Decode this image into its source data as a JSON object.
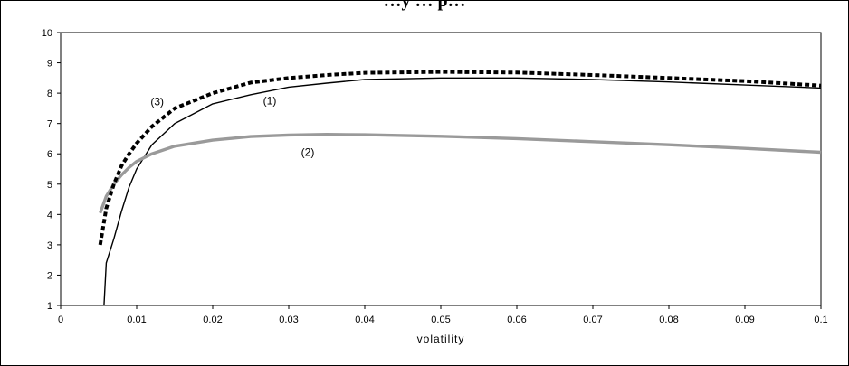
{
  "chart_data": {
    "type": "line",
    "title": "…y … p…",
    "xlabel": "volatility",
    "ylabel": "",
    "xlim": [
      0,
      0.1
    ],
    "ylim": [
      1,
      10
    ],
    "x_ticks": [
      "0",
      "0.01",
      "0.02",
      "0.03",
      "0.04",
      "0.05",
      "0.06",
      "0.07",
      "0.08",
      "0.09",
      "0.1"
    ],
    "y_ticks": [
      "1",
      "2",
      "3",
      "4",
      "5",
      "6",
      "7",
      "8",
      "9",
      "10"
    ],
    "grid": true,
    "legend": "none",
    "series": [
      {
        "name": "(1)",
        "color": "#000000",
        "style": "solid",
        "points": [
          [
            0.0057,
            1.0
          ],
          [
            0.006,
            2.4
          ],
          [
            0.007,
            3.2
          ],
          [
            0.008,
            4.1
          ],
          [
            0.009,
            4.9
          ],
          [
            0.01,
            5.5
          ],
          [
            0.012,
            6.3
          ],
          [
            0.015,
            7.0
          ],
          [
            0.02,
            7.65
          ],
          [
            0.025,
            7.95
          ],
          [
            0.03,
            8.2
          ],
          [
            0.035,
            8.33
          ],
          [
            0.04,
            8.45
          ],
          [
            0.05,
            8.5
          ],
          [
            0.06,
            8.5
          ],
          [
            0.07,
            8.45
          ],
          [
            0.08,
            8.37
          ],
          [
            0.09,
            8.27
          ],
          [
            0.1,
            8.17
          ]
        ]
      },
      {
        "name": "(2)",
        "color": "#9a9a9a",
        "style": "solid",
        "points": [
          [
            0.0052,
            4.05
          ],
          [
            0.006,
            4.6
          ],
          [
            0.007,
            5.0
          ],
          [
            0.008,
            5.3
          ],
          [
            0.009,
            5.55
          ],
          [
            0.01,
            5.75
          ],
          [
            0.012,
            6.0
          ],
          [
            0.015,
            6.25
          ],
          [
            0.02,
            6.45
          ],
          [
            0.025,
            6.57
          ],
          [
            0.03,
            6.62
          ],
          [
            0.035,
            6.64
          ],
          [
            0.04,
            6.63
          ],
          [
            0.05,
            6.58
          ],
          [
            0.06,
            6.5
          ],
          [
            0.07,
            6.4
          ],
          [
            0.08,
            6.3
          ],
          [
            0.09,
            6.18
          ],
          [
            0.1,
            6.05
          ]
        ]
      },
      {
        "name": "(3)",
        "color": "#000000",
        "style": "dashed",
        "points": [
          [
            0.0052,
            3.0
          ],
          [
            0.006,
            4.2
          ],
          [
            0.007,
            5.0
          ],
          [
            0.008,
            5.6
          ],
          [
            0.009,
            6.0
          ],
          [
            0.01,
            6.35
          ],
          [
            0.012,
            6.9
          ],
          [
            0.015,
            7.5
          ],
          [
            0.02,
            8.0
          ],
          [
            0.025,
            8.35
          ],
          [
            0.03,
            8.5
          ],
          [
            0.035,
            8.6
          ],
          [
            0.04,
            8.67
          ],
          [
            0.05,
            8.7
          ],
          [
            0.06,
            8.68
          ],
          [
            0.07,
            8.6
          ],
          [
            0.08,
            8.5
          ],
          [
            0.09,
            8.4
          ],
          [
            0.1,
            8.25
          ]
        ]
      }
    ],
    "annotations": [
      {
        "text": "(1)",
        "x": 0.0275,
        "y": 7.75
      },
      {
        "text": "(2)",
        "x": 0.0325,
        "y": 6.05
      },
      {
        "text": "(3)",
        "x": 0.0127,
        "y": 7.72
      }
    ]
  }
}
